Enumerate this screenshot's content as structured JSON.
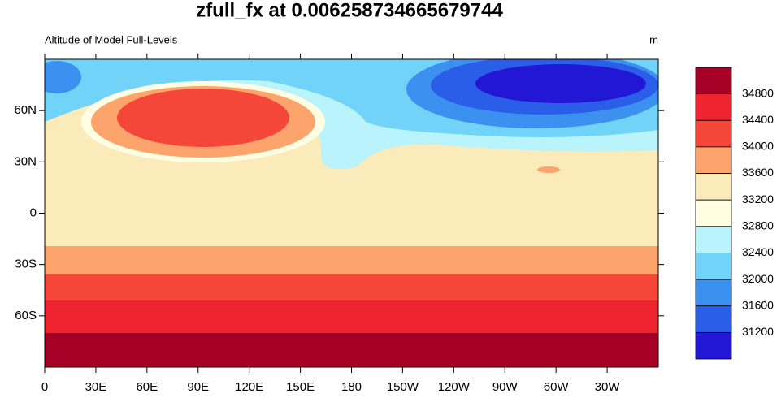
{
  "title": "zfull_fx at 0.006258734665679744",
  "left_string": "Altitude of Model Full-Levels",
  "right_string": "m",
  "x_tick_labels": [
    "0",
    "30E",
    "60E",
    "90E",
    "120E",
    "150E",
    "180",
    "150W",
    "120W",
    "90W",
    "60W",
    "30W"
  ],
  "y_tick_labels": [
    "60N",
    "30N",
    "0",
    "30S",
    "60S"
  ],
  "colorbar": {
    "colors": [
      "#a50026",
      "#ee2530",
      "#f5463a",
      "#fca46b",
      "#fbebbb",
      "#fffde2",
      "#b9f3fb",
      "#72d3f8",
      "#3b90f0",
      "#2a5ee8",
      "#2117d4"
    ],
    "levels": [
      34800,
      34400,
      34000,
      33600,
      33200,
      32800,
      32400,
      32000,
      31600,
      31200
    ]
  }
}
